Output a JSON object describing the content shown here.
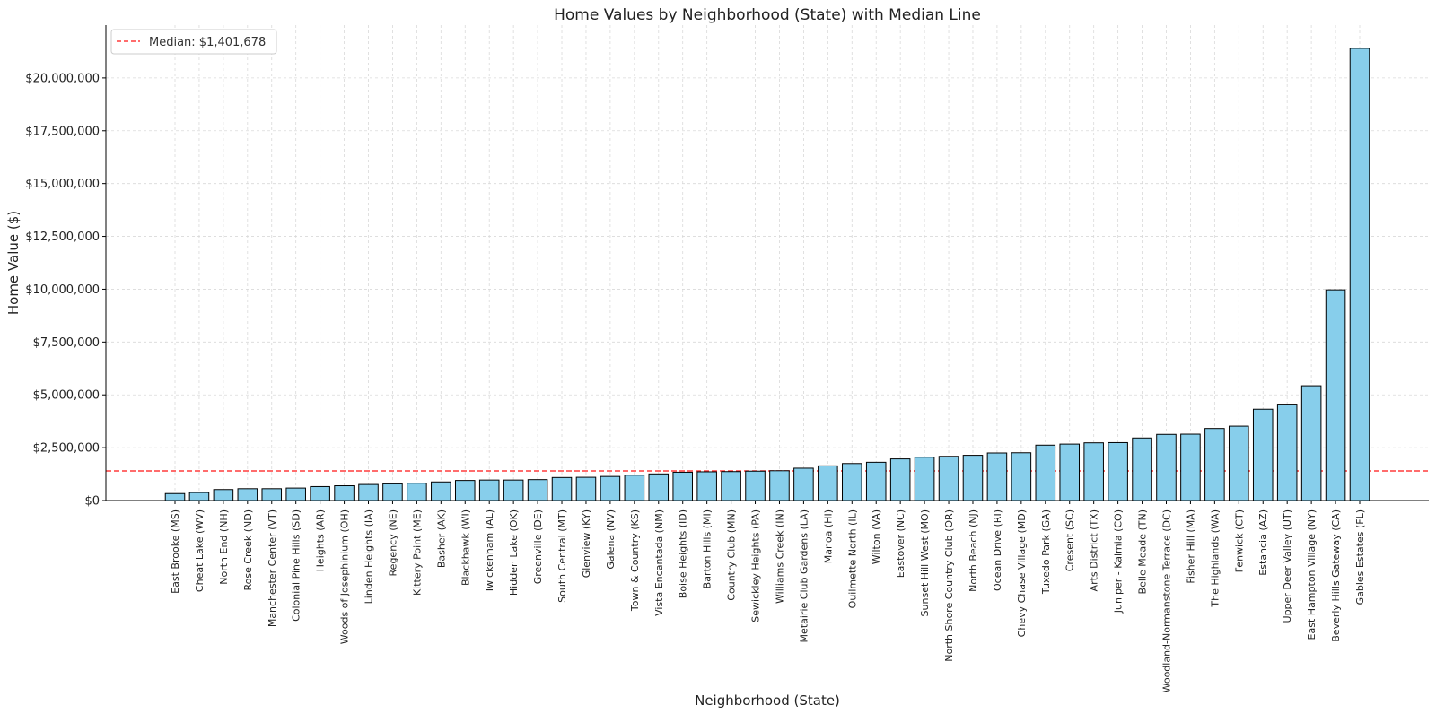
{
  "chart_data": {
    "type": "bar",
    "title": "Home Values by Neighborhood (State) with Median Line",
    "xlabel": "Neighborhood (State)",
    "ylabel": "Home Value ($)",
    "ylim": [
      0,
      22500000
    ],
    "yticks": [
      0,
      2500000,
      5000000,
      7500000,
      10000000,
      12500000,
      15000000,
      17500000,
      20000000
    ],
    "ytick_labels": [
      "$0",
      "$2,500,000",
      "$5,000,000",
      "$7,500,000",
      "$10,000,000",
      "$12,500,000",
      "$15,000,000",
      "$17,500,000",
      "$20,000,000"
    ],
    "grid": true,
    "legend_position": "top-left",
    "median": {
      "value": 1401678,
      "label": "Median: $1,401,678",
      "color": "#ff3b3b",
      "style": "dashed"
    },
    "bar_color": "#87ceeb",
    "bar_edge_color": "#000000",
    "categories": [
      "East Brooke (MS)",
      "Cheat Lake (WV)",
      "North End (NH)",
      "Rose Creek (ND)",
      "Manchester Center (VT)",
      "Colonial Pine Hills (SD)",
      "Heights (AR)",
      "Woods of Josephinium (OH)",
      "Linden Heights (IA)",
      "Regency (NE)",
      "Kittery Point (ME)",
      "Basher (AK)",
      "Blackhawk (WI)",
      "Twickenham (AL)",
      "Hidden Lake (OK)",
      "Greenville (DE)",
      "South Central (MT)",
      "Glenview (KY)",
      "Galena (NV)",
      "Town & Country (KS)",
      "Vista Encantada (NM)",
      "Boise Heights (ID)",
      "Barton Hills (MI)",
      "Country Club (MN)",
      "Sewickley Heights (PA)",
      "Williams Creek (IN)",
      "Metairie Club Gardens (LA)",
      "Manoa (HI)",
      "Ouilmette North (IL)",
      "Wilton (VA)",
      "Eastover (NC)",
      "Sunset Hill West (MO)",
      "North Shore Country Club (OR)",
      "North Beach (NJ)",
      "Ocean Drive (RI)",
      "Chevy Chase Village (MD)",
      "Tuxedo Park (GA)",
      "Cresent (SC)",
      "Arts District (TX)",
      "Juniper - Kalmia (CO)",
      "Belle Meade (TN)",
      "Woodland-Normanstone Terrace (DC)",
      "Fisher Hill (MA)",
      "The Highlands (WA)",
      "Fenwick (CT)",
      "Estancia (AZ)",
      "Upper Deer Valley (UT)",
      "East Hampton Village (NY)",
      "Beverly Hills Gateway (CA)",
      "Gables Estates (FL)"
    ],
    "values": [
      330000,
      380000,
      520000,
      560000,
      560000,
      590000,
      660000,
      700000,
      760000,
      790000,
      820000,
      880000,
      950000,
      970000,
      970000,
      990000,
      1090000,
      1100000,
      1140000,
      1200000,
      1260000,
      1340000,
      1360000,
      1370000,
      1390000,
      1410000,
      1530000,
      1640000,
      1750000,
      1810000,
      1970000,
      2050000,
      2090000,
      2140000,
      2250000,
      2260000,
      2620000,
      2670000,
      2730000,
      2740000,
      2960000,
      3130000,
      3140000,
      3410000,
      3520000,
      4320000,
      4560000,
      5430000,
      9970000,
      21400000
    ]
  }
}
